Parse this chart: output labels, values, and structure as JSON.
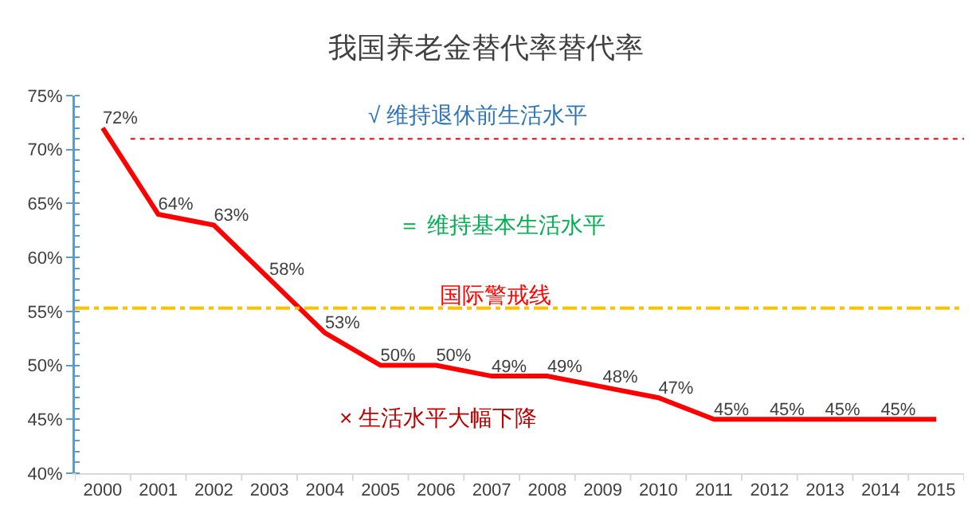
{
  "chart_data": {
    "type": "line",
    "title": "我国养老金替代率替代率",
    "categories": [
      "2000",
      "2001",
      "2002",
      "2003",
      "2004",
      "2005",
      "2006",
      "2007",
      "2008",
      "2009",
      "2010",
      "2011",
      "2012",
      "2013",
      "2014",
      "2015"
    ],
    "series": [
      {
        "color": "#ff0000",
        "values": [
          72,
          64,
          63,
          58,
          53,
          50,
          50,
          49,
          49,
          48,
          47,
          45,
          45,
          45,
          45,
          45
        ],
        "value_labels": [
          "72%",
          "64%",
          "63%",
          "58%",
          "53%",
          "50%",
          "50%",
          "49%",
          "49%",
          "48%",
          "47%",
          "45%",
          "45%",
          "45%",
          "45%",
          null
        ]
      }
    ],
    "ylim": [
      40,
      75
    ],
    "yticks": [
      {
        "value": 40,
        "label": "40%"
      },
      {
        "value": 45,
        "label": "45%"
      },
      {
        "value": 50,
        "label": "50%"
      },
      {
        "value": 55,
        "label": "55%"
      },
      {
        "value": 60,
        "label": "60%"
      },
      {
        "value": 65,
        "label": "65%"
      },
      {
        "value": 70,
        "label": "70%"
      },
      {
        "value": 75,
        "label": "75%"
      }
    ],
    "ref_lines": [
      {
        "axis": "y",
        "value": 71,
        "color": "#ff0000",
        "line_style": "dotted"
      },
      {
        "axis": "y",
        "value": 55.3,
        "color": "#ffc000",
        "line_style": "dashed",
        "label": "国际警戒线"
      }
    ],
    "annotations": [
      "√ 维持退休前生活水平",
      "＝ 维持基本生活水平",
      "× 生活水平大幅下降"
    ],
    "grid": false,
    "marker": "none",
    "line_style": "solid"
  }
}
